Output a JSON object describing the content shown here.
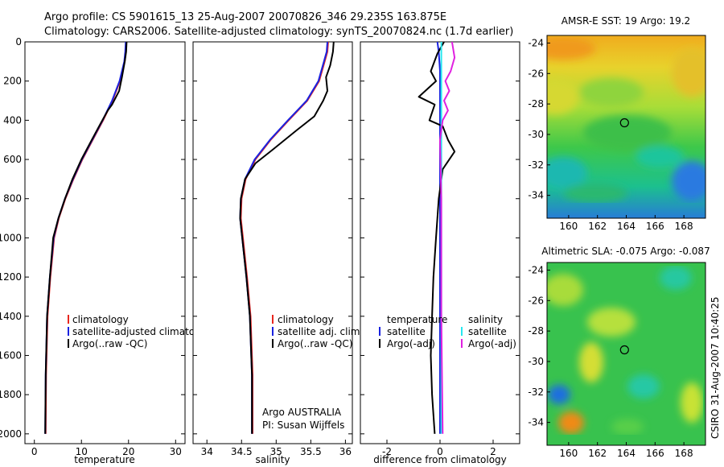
{
  "header": {
    "line1": "Argo profile: CS 5901615_13 25-Aug-2007 20070826_346 29.235S 163.875E",
    "line2": "Climatology: CARS2006. Satellite-adjusted climatology: synTS_20070824.nc (1.7d earlier)"
  },
  "credit": "CSIRO 31-Aug-2007 10:40:25",
  "colors": {
    "climatology": "#e8261e",
    "satellite": "#1a22e0",
    "argo": "#000000",
    "sat_salinity": "#26e8f0",
    "argo_salinity": "#e020e0"
  },
  "chart_data": [
    {
      "id": "temperature",
      "type": "line",
      "xlabel": "temperature",
      "ylabel": "",
      "xlim": [
        -2,
        32
      ],
      "ylim": [
        2050,
        0
      ],
      "xticks": [
        0,
        10,
        20,
        30
      ],
      "yticks": [
        0,
        200,
        400,
        600,
        800,
        1000,
        1200,
        1400,
        1600,
        1800,
        2000
      ],
      "legend": [
        "climatology",
        "satellite-adjusted climatology",
        "Argo(..raw -QC)"
      ],
      "legend_colors": [
        "#e8261e",
        "#1a22e0",
        "#000000"
      ],
      "annotations": [],
      "series": [
        {
          "name": "climatology",
          "color": "#e8261e",
          "x": [
            19.5,
            19.4,
            19.2,
            18.2,
            16.6,
            14.6,
            12.4,
            10.2,
            8.3,
            6.6,
            5.2,
            4.2,
            3.4,
            2.8,
            2.5,
            2.4
          ],
          "y": [
            0,
            50,
            100,
            200,
            300,
            400,
            500,
            600,
            700,
            800,
            900,
            1000,
            1200,
            1400,
            1700,
            2000
          ]
        },
        {
          "name": "satellite-adjusted climatology",
          "color": "#1a22e0",
          "x": [
            19.4,
            19.3,
            19.1,
            18.1,
            16.5,
            14.5,
            12.3,
            10.1,
            8.2,
            6.5,
            5.1,
            4.1,
            3.3,
            2.7,
            2.4,
            2.3
          ],
          "y": [
            0,
            50,
            100,
            200,
            300,
            400,
            500,
            600,
            700,
            800,
            900,
            1000,
            1200,
            1400,
            1700,
            2000
          ]
        },
        {
          "name": "Argo(..raw -QC)",
          "color": "#000000",
          "x": [
            19.6,
            19.5,
            19.2,
            18.6,
            18.0,
            16.5,
            15.6,
            14.0,
            12.2,
            10.0,
            8.1,
            6.5,
            5.1,
            4.0,
            3.3,
            2.7,
            2.4,
            2.3
          ],
          "y": [
            0,
            50,
            100,
            180,
            250,
            320,
            350,
            420,
            500,
            600,
            700,
            800,
            900,
            1000,
            1200,
            1400,
            1700,
            2000
          ]
        }
      ]
    },
    {
      "id": "salinity",
      "type": "line",
      "xlabel": "salinity",
      "ylabel": "",
      "xlim": [
        33.8,
        36.1
      ],
      "ylim": [
        2050,
        0
      ],
      "xticks": [
        34,
        34.5,
        35,
        35.5,
        36
      ],
      "yticks": [],
      "legend": [
        "climatology",
        "satellite adj. clim.",
        "Argo(..raw -QC)"
      ],
      "legend_colors": [
        "#e8261e",
        "#1a22e0",
        "#000000"
      ],
      "annotations": [
        "Argo AUSTRALIA",
        "PI: Susan Wijffels"
      ],
      "series": [
        {
          "name": "climatology",
          "color": "#e8261e",
          "x": [
            35.75,
            35.74,
            35.7,
            35.62,
            35.45,
            35.18,
            34.92,
            34.7,
            34.56,
            34.5,
            34.49,
            34.52,
            34.58,
            34.63,
            34.66,
            34.66
          ],
          "y": [
            0,
            50,
            100,
            200,
            300,
            400,
            500,
            600,
            700,
            800,
            900,
            1000,
            1200,
            1400,
            1700,
            2000
          ]
        },
        {
          "name": "satellite adj. clim.",
          "color": "#1a22e0",
          "x": [
            35.74,
            35.73,
            35.69,
            35.61,
            35.44,
            35.17,
            34.91,
            34.69,
            34.55,
            34.49,
            34.48,
            34.51,
            34.57,
            34.62,
            34.65,
            34.65
          ],
          "y": [
            0,
            50,
            100,
            200,
            300,
            400,
            500,
            600,
            700,
            800,
            900,
            1000,
            1200,
            1400,
            1700,
            2000
          ]
        },
        {
          "name": "Argo(..raw -QC)",
          "color": "#000000",
          "x": [
            35.83,
            35.82,
            35.78,
            35.72,
            35.74,
            35.68,
            35.55,
            35.3,
            34.95,
            34.7,
            34.55,
            34.49,
            34.48,
            34.51,
            34.57,
            34.62,
            34.65,
            34.65
          ],
          "y": [
            0,
            50,
            120,
            180,
            250,
            300,
            380,
            450,
            550,
            620,
            700,
            800,
            900,
            1000,
            1200,
            1400,
            1700,
            2000
          ]
        }
      ]
    },
    {
      "id": "difference",
      "type": "line",
      "xlabel": "difference from climatology",
      "ylabel": "",
      "xlim": [
        -3,
        3
      ],
      "ylim": [
        2050,
        0
      ],
      "xticks": [
        -2,
        0,
        2
      ],
      "yticks": [],
      "legend": [
        "temperature",
        "satellite",
        "Argo(-adj)",
        "salinity",
        "satellite",
        "Argo(-adj)"
      ],
      "legend_colors": [
        "",
        "#1a22e0",
        "#000000",
        "",
        "#26e8f0",
        "#e020e0"
      ],
      "annotations": [],
      "series": [
        {
          "name": "satellite",
          "color": "#1a22e0",
          "x": [
            -0.1,
            -0.05,
            0.0,
            0.0,
            0.0,
            0.0,
            0.0
          ],
          "y": [
            0,
            50,
            150,
            400,
            800,
            1400,
            2000
          ]
        },
        {
          "name": "Argo(-adj)",
          "color": "#000000",
          "x": [
            0.15,
            -0.1,
            -0.35,
            -0.15,
            -0.8,
            -0.2,
            -0.4,
            0.1,
            0.3,
            0.55,
            0.1,
            -0.05,
            -0.15,
            -0.25,
            -0.3,
            -0.35,
            -0.3,
            -0.2
          ],
          "y": [
            0,
            60,
            150,
            200,
            280,
            320,
            400,
            430,
            500,
            560,
            650,
            800,
            1000,
            1200,
            1400,
            1600,
            1800,
            2000
          ]
        },
        {
          "name": "satellite",
          "color": "#26e8f0",
          "x": [
            0.05,
            0.05,
            0.05,
            0.05,
            0.05,
            0.05
          ],
          "y": [
            0,
            100,
            400,
            800,
            1400,
            2000
          ]
        },
        {
          "name": "Argo(-adj)",
          "color": "#e020e0",
          "x": [
            0.45,
            0.55,
            0.4,
            0.2,
            0.35,
            0.15,
            0.3,
            0.1,
            0.05,
            0.0,
            0.05,
            0.05,
            0.1
          ],
          "y": [
            0,
            80,
            150,
            200,
            250,
            300,
            350,
            400,
            450,
            500,
            800,
            1400,
            2000
          ]
        }
      ]
    },
    {
      "id": "sst-map",
      "type": "heatmap",
      "title": "AMSR-E SST: 19 Argo: 19.2",
      "xlabel": "",
      "ylabel": "",
      "xlim": [
        158.5,
        169.5
      ],
      "ylim": [
        -35.5,
        -23.5
      ],
      "xticks": [
        160,
        162,
        164,
        166,
        168
      ],
      "yticks": [
        -24,
        -26,
        -28,
        -30,
        -32,
        -34
      ],
      "marker": [
        163.875,
        -29.235
      ]
    },
    {
      "id": "sla-map",
      "type": "heatmap",
      "title": "Altimetric SLA: -0.075 Argo: -0.087",
      "xlabel": "",
      "ylabel": "",
      "xlim": [
        158.5,
        169.5
      ],
      "ylim": [
        -35.5,
        -23.5
      ],
      "xticks": [
        160,
        162,
        164,
        166,
        168
      ],
      "yticks": [
        -24,
        -26,
        -28,
        -30,
        -32,
        -34
      ],
      "marker": [
        163.875,
        -29.235
      ]
    }
  ]
}
